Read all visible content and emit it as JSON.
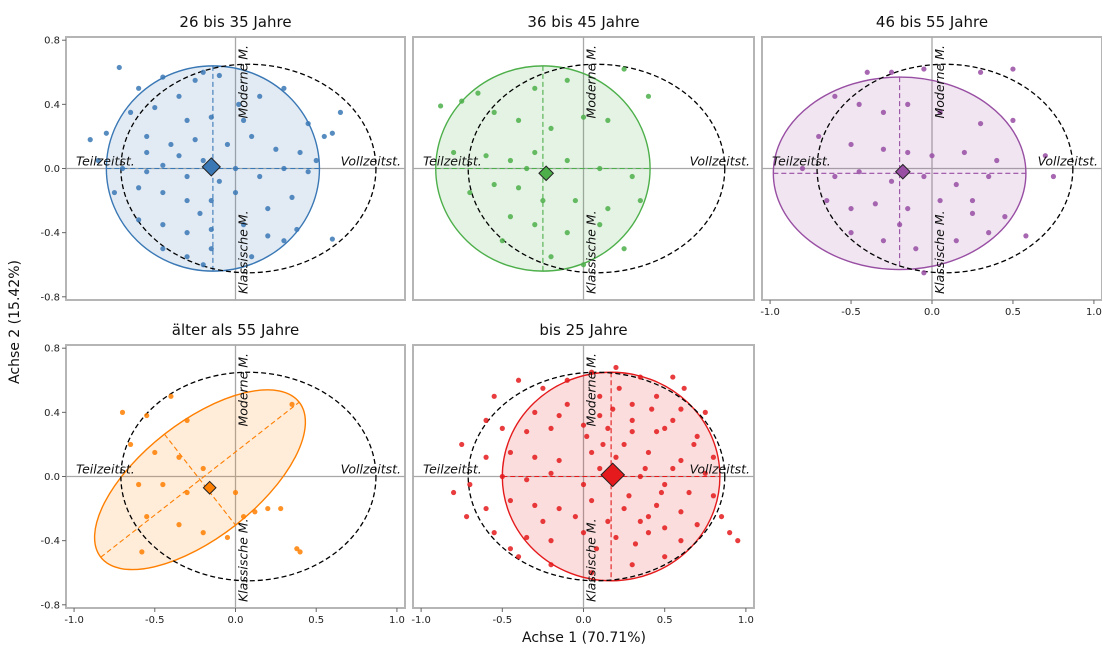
{
  "chart_data": {
    "type": "scatter",
    "xlabel": "Achse 1 (70.71%)",
    "ylabel": "Achse 2 (15.42%)",
    "xlim": [
      -1.05,
      1.05
    ],
    "ylim": [
      -0.82,
      0.82
    ],
    "xticks": [
      -1.0,
      -0.5,
      0.0,
      0.5,
      1.0
    ],
    "yticks": [
      -0.8,
      -0.4,
      0.0,
      0.4,
      0.8
    ],
    "xtick_labels": [
      "-1.0",
      "-0.5",
      "0.0",
      "0.5",
      "1.0"
    ],
    "ytick_labels": [
      "-0.8",
      "-0.4",
      "0.0",
      "0.4",
      "0.8"
    ],
    "grid": false,
    "reference_ellipse": {
      "center": [
        0.08,
        0.0
      ],
      "rx": 0.79,
      "ry": 0.65
    },
    "dimension_labels": {
      "left": "Teilzeitst.",
      "right": "Vollzeitst.",
      "top": "Moderne M.",
      "bottom": "Klassische M."
    },
    "panels": [
      {
        "title": "26 bis 35 Jahre",
        "color": "#3a78b5",
        "centroid": [
          -0.15,
          0.01
        ],
        "centroid_size": 1.0,
        "ellipse": {
          "center": [
            -0.14,
            0.0
          ],
          "rx": 0.66,
          "ry": 0.64,
          "angle": 0
        },
        "points": [
          [
            -0.72,
            0.63
          ],
          [
            -0.6,
            0.5
          ],
          [
            -0.45,
            0.57
          ],
          [
            -0.25,
            0.55
          ],
          [
            -0.2,
            0.6
          ],
          [
            -0.1,
            0.58
          ],
          [
            -0.35,
            0.45
          ],
          [
            -0.5,
            0.38
          ],
          [
            -0.65,
            0.35
          ],
          [
            -0.3,
            0.3
          ],
          [
            -0.15,
            0.32
          ],
          [
            0.02,
            0.4
          ],
          [
            0.15,
            0.45
          ],
          [
            0.3,
            0.5
          ],
          [
            0.45,
            0.28
          ],
          [
            0.55,
            0.2
          ],
          [
            0.6,
            0.22
          ],
          [
            -0.8,
            0.22
          ],
          [
            -0.55,
            0.2
          ],
          [
            -0.4,
            0.15
          ],
          [
            -0.25,
            0.18
          ],
          [
            -0.05,
            0.15
          ],
          [
            0.1,
            0.2
          ],
          [
            0.25,
            0.12
          ],
          [
            0.4,
            0.1
          ],
          [
            0.5,
            0.05
          ],
          [
            -0.85,
            0.05
          ],
          [
            -0.7,
            0.0
          ],
          [
            -0.55,
            -0.02
          ],
          [
            -0.45,
            0.02
          ],
          [
            -0.3,
            -0.05
          ],
          [
            -0.2,
            0.05
          ],
          [
            0.0,
            0.0
          ],
          [
            0.15,
            -0.05
          ],
          [
            0.3,
            0.0
          ],
          [
            0.45,
            -0.02
          ],
          [
            -0.75,
            -0.15
          ],
          [
            -0.6,
            -0.12
          ],
          [
            -0.45,
            -0.15
          ],
          [
            -0.3,
            -0.2
          ],
          [
            -0.15,
            -0.2
          ],
          [
            0.0,
            -0.15
          ],
          [
            0.2,
            -0.25
          ],
          [
            0.35,
            -0.18
          ],
          [
            -0.6,
            -0.32
          ],
          [
            -0.45,
            -0.35
          ],
          [
            -0.3,
            -0.4
          ],
          [
            -0.15,
            -0.38
          ],
          [
            0.05,
            -0.35
          ],
          [
            0.2,
            -0.42
          ],
          [
            -0.45,
            -0.5
          ],
          [
            -0.3,
            -0.55
          ],
          [
            -0.15,
            -0.5
          ],
          [
            0.1,
            -0.55
          ],
          [
            0.3,
            -0.45
          ],
          [
            0.6,
            -0.44
          ],
          [
            0.65,
            0.35
          ],
          [
            -0.2,
            -0.6
          ],
          [
            -0.35,
            0.08
          ],
          [
            -0.1,
            -0.08
          ],
          [
            -0.55,
            0.1
          ],
          [
            0.05,
            0.3
          ],
          [
            0.38,
            -0.38
          ],
          [
            -0.9,
            0.18
          ],
          [
            -0.22,
            -0.28
          ]
        ]
      },
      {
        "title": "36 bis 45 Jahre",
        "color": "#4daf4a",
        "centroid": [
          -0.23,
          -0.03
        ],
        "centroid_size": 0.8,
        "ellipse": {
          "center": [
            -0.25,
            0.0
          ],
          "rx": 0.66,
          "ry": 0.64,
          "angle": 0
        },
        "points": [
          [
            -0.88,
            0.39
          ],
          [
            -0.75,
            0.42
          ],
          [
            -0.65,
            0.47
          ],
          [
            -0.3,
            0.5
          ],
          [
            -0.1,
            0.55
          ],
          [
            0.25,
            0.62
          ],
          [
            0.4,
            0.45
          ],
          [
            -0.55,
            0.35
          ],
          [
            -0.4,
            0.3
          ],
          [
            -0.2,
            0.25
          ],
          [
            0.0,
            0.32
          ],
          [
            0.15,
            0.3
          ],
          [
            -0.8,
            0.1
          ],
          [
            -0.6,
            0.08
          ],
          [
            -0.45,
            0.05
          ],
          [
            -0.3,
            0.1
          ],
          [
            -0.1,
            0.05
          ],
          [
            0.1,
            0.0
          ],
          [
            0.3,
            -0.05
          ],
          [
            -0.55,
            -0.1
          ],
          [
            -0.4,
            -0.12
          ],
          [
            -0.25,
            -0.2
          ],
          [
            -0.05,
            -0.2
          ],
          [
            0.15,
            -0.25
          ],
          [
            0.35,
            -0.2
          ],
          [
            -0.45,
            -0.3
          ],
          [
            -0.3,
            -0.35
          ],
          [
            -0.1,
            -0.4
          ],
          [
            0.1,
            -0.35
          ],
          [
            -0.2,
            -0.55
          ],
          [
            0.0,
            -0.6
          ],
          [
            0.25,
            -0.5
          ],
          [
            -0.5,
            -0.45
          ],
          [
            -0.7,
            -0.15
          ],
          [
            -0.35,
            0.0
          ]
        ]
      },
      {
        "title": "46 bis 55 Jahre",
        "color": "#984ea3",
        "centroid": [
          -0.18,
          -0.02
        ],
        "centroid_size": 0.8,
        "ellipse": {
          "center": [
            -0.2,
            -0.03
          ],
          "rx": 0.78,
          "ry": 0.6,
          "angle": 0
        },
        "points": [
          [
            -0.4,
            0.6
          ],
          [
            -0.25,
            0.6
          ],
          [
            -0.05,
            0.62
          ],
          [
            0.3,
            0.6
          ],
          [
            0.5,
            0.62
          ],
          [
            -0.6,
            0.45
          ],
          [
            -0.45,
            0.4
          ],
          [
            -0.3,
            0.35
          ],
          [
            -0.15,
            0.4
          ],
          [
            0.05,
            0.35
          ],
          [
            0.3,
            0.28
          ],
          [
            0.5,
            0.3
          ],
          [
            -0.7,
            0.2
          ],
          [
            -0.5,
            0.15
          ],
          [
            -0.3,
            0.12
          ],
          [
            -0.15,
            0.1
          ],
          [
            0.0,
            0.08
          ],
          [
            0.2,
            0.1
          ],
          [
            0.4,
            0.05
          ],
          [
            0.7,
            0.08
          ],
          [
            -0.8,
            0.0
          ],
          [
            -0.6,
            -0.05
          ],
          [
            -0.45,
            -0.02
          ],
          [
            -0.25,
            -0.08
          ],
          [
            -0.05,
            -0.05
          ],
          [
            0.15,
            -0.1
          ],
          [
            0.35,
            -0.05
          ],
          [
            0.75,
            -0.05
          ],
          [
            -0.65,
            -0.2
          ],
          [
            -0.5,
            -0.25
          ],
          [
            -0.35,
            -0.22
          ],
          [
            -0.15,
            -0.25
          ],
          [
            0.05,
            -0.2
          ],
          [
            0.25,
            -0.28
          ],
          [
            0.45,
            -0.3
          ],
          [
            0.58,
            -0.42
          ],
          [
            -0.5,
            -0.4
          ],
          [
            -0.3,
            -0.45
          ],
          [
            -0.1,
            -0.5
          ],
          [
            0.15,
            -0.45
          ],
          [
            0.35,
            -0.4
          ],
          [
            -0.05,
            -0.65
          ],
          [
            0.25,
            -0.2
          ],
          [
            -0.2,
            -0.35
          ]
        ]
      },
      {
        "title": "älter als 55 Jahre",
        "color": "#ff7f00",
        "centroid": [
          -0.16,
          -0.07
        ],
        "centroid_size": 0.7,
        "ellipse": {
          "center": [
            -0.22,
            -0.02
          ],
          "rx": 0.78,
          "ry": 0.36,
          "angle": -38
        },
        "points": [
          [
            -0.7,
            0.4
          ],
          [
            -0.55,
            0.38
          ],
          [
            -0.4,
            0.5
          ],
          [
            -0.3,
            0.35
          ],
          [
            -0.65,
            0.2
          ],
          [
            -0.5,
            0.15
          ],
          [
            -0.35,
            0.12
          ],
          [
            -0.2,
            0.05
          ],
          [
            -0.6,
            -0.05
          ],
          [
            -0.45,
            -0.05
          ],
          [
            -0.3,
            -0.1
          ],
          [
            -0.15,
            -0.08
          ],
          [
            0.0,
            -0.1
          ],
          [
            -0.55,
            -0.25
          ],
          [
            -0.35,
            -0.3
          ],
          [
            -0.2,
            -0.35
          ],
          [
            0.05,
            -0.25
          ],
          [
            0.2,
            -0.2
          ],
          [
            0.28,
            -0.2
          ],
          [
            0.35,
            0.45
          ],
          [
            0.38,
            -0.45
          ],
          [
            0.4,
            -0.47
          ],
          [
            -0.58,
            -0.47
          ],
          [
            -0.05,
            -0.38
          ],
          [
            0.12,
            -0.22
          ]
        ]
      },
      {
        "title": "bis 25 Jahre",
        "color": "#e41a1c",
        "centroid": [
          0.18,
          0.01
        ],
        "centroid_size": 1.3,
        "ellipse": {
          "center": [
            0.17,
            0.0
          ],
          "rx": 0.67,
          "ry": 0.65,
          "angle": 0
        },
        "points": [
          [
            -0.55,
            0.5
          ],
          [
            -0.4,
            0.6
          ],
          [
            -0.25,
            0.55
          ],
          [
            0.05,
            0.65
          ],
          [
            0.2,
            0.68
          ],
          [
            0.35,
            0.62
          ],
          [
            0.55,
            0.62
          ],
          [
            -0.3,
            0.4
          ],
          [
            -0.1,
            0.45
          ],
          [
            0.1,
            0.5
          ],
          [
            0.3,
            0.45
          ],
          [
            0.45,
            0.5
          ],
          [
            0.6,
            0.42
          ],
          [
            -0.5,
            0.3
          ],
          [
            -0.35,
            0.28
          ],
          [
            -0.2,
            0.3
          ],
          [
            0.0,
            0.32
          ],
          [
            0.15,
            0.3
          ],
          [
            0.3,
            0.28
          ],
          [
            0.5,
            0.3
          ],
          [
            0.7,
            0.25
          ],
          [
            -0.6,
            0.12
          ],
          [
            -0.45,
            0.15
          ],
          [
            -0.3,
            0.12
          ],
          [
            -0.15,
            0.1
          ],
          [
            0.05,
            0.15
          ],
          [
            0.2,
            0.12
          ],
          [
            0.4,
            0.15
          ],
          [
            0.6,
            0.1
          ],
          [
            0.8,
            0.12
          ],
          [
            -0.7,
            -0.05
          ],
          [
            -0.5,
            0.0
          ],
          [
            -0.35,
            -0.02
          ],
          [
            -0.2,
            0.02
          ],
          [
            0.0,
            -0.05
          ],
          [
            0.2,
            -0.02
          ],
          [
            0.35,
            0.0
          ],
          [
            0.5,
            -0.05
          ],
          [
            0.75,
            0.02
          ],
          [
            -0.6,
            -0.2
          ],
          [
            -0.45,
            -0.15
          ],
          [
            -0.3,
            -0.18
          ],
          [
            -0.15,
            -0.2
          ],
          [
            0.05,
            -0.15
          ],
          [
            0.25,
            -0.2
          ],
          [
            0.45,
            -0.18
          ],
          [
            0.6,
            -0.22
          ],
          [
            0.85,
            -0.25
          ],
          [
            -0.55,
            -0.35
          ],
          [
            -0.35,
            -0.38
          ],
          [
            -0.2,
            -0.4
          ],
          [
            0.0,
            -0.35
          ],
          [
            0.2,
            -0.38
          ],
          [
            0.4,
            -0.35
          ],
          [
            0.6,
            -0.4
          ],
          [
            0.9,
            -0.35
          ],
          [
            -0.4,
            -0.5
          ],
          [
            -0.2,
            -0.55
          ],
          [
            0.05,
            -0.6
          ],
          [
            0.3,
            -0.55
          ],
          [
            0.5,
            -0.5
          ],
          [
            0.95,
            -0.4
          ],
          [
            -0.1,
            0.6
          ],
          [
            0.1,
            0.38
          ],
          [
            0.25,
            0.2
          ],
          [
            0.38,
            0.05
          ],
          [
            0.48,
            -0.1
          ],
          [
            0.15,
            -0.28
          ],
          [
            0.32,
            -0.42
          ],
          [
            -0.05,
            -0.25
          ],
          [
            0.1,
            0.05
          ],
          [
            0.3,
            0.35
          ],
          [
            0.45,
            0.28
          ],
          [
            0.55,
            0.05
          ],
          [
            0.65,
            -0.1
          ],
          [
            0.7,
            -0.3
          ],
          [
            0.4,
            -0.25
          ],
          [
            0.28,
            -0.12
          ],
          [
            0.12,
            0.2
          ],
          [
            0.02,
            0.25
          ],
          [
            -0.25,
            -0.28
          ],
          [
            -0.45,
            -0.45
          ],
          [
            0.55,
            0.35
          ],
          [
            0.42,
            0.42
          ],
          [
            0.22,
            0.55
          ],
          [
            0.62,
            0.55
          ],
          [
            0.75,
            0.4
          ],
          [
            0.68,
            0.2
          ],
          [
            0.8,
            -0.12
          ],
          [
            0.5,
            -0.32
          ],
          [
            0.35,
            -0.28
          ],
          [
            0.18,
            0.42
          ],
          [
            0.08,
            -0.45
          ],
          [
            -0.15,
            0.38
          ],
          [
            -0.6,
            0.35
          ],
          [
            -0.75,
            0.2
          ],
          [
            -0.8,
            -0.1
          ],
          [
            -0.72,
            -0.25
          ]
        ]
      }
    ]
  }
}
